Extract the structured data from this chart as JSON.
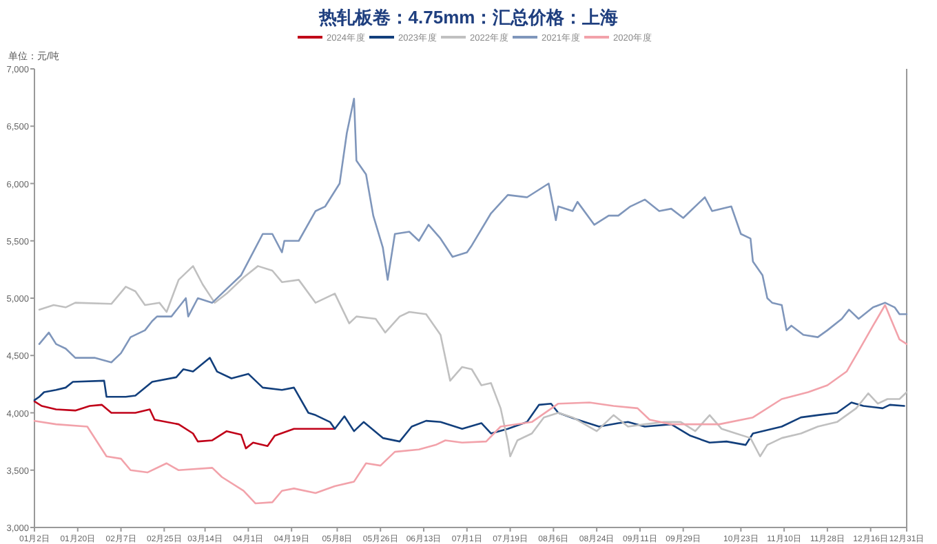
{
  "chart_data": {
    "type": "line",
    "title": "热轧板卷：4.75mm：汇总价格：上海",
    "annotations": [
      "单位：元/吨"
    ],
    "legend": "top",
    "xlim": [
      "--01-02",
      "--12-31"
    ],
    "xticks": [
      {
        "value": "--01-02",
        "label": "01月2日"
      },
      {
        "value": "--01-20",
        "label": "01月20日"
      },
      {
        "value": "--02-07",
        "label": "02月7日"
      },
      {
        "value": "--02-25",
        "label": "02月25日"
      },
      {
        "value": "--03-14",
        "label": "03月14日"
      },
      {
        "value": "--04-01",
        "label": "04月1日"
      },
      {
        "value": "--04-19",
        "label": "04月19日"
      },
      {
        "value": "--05-08",
        "label": "05月8日"
      },
      {
        "value": "--05-26",
        "label": "05月26日"
      },
      {
        "value": "--06-13",
        "label": "06月13日"
      },
      {
        "value": "--07-01",
        "label": "07月1日"
      },
      {
        "value": "--07-19",
        "label": "07月19日"
      },
      {
        "value": "--08-06",
        "label": "08月6日"
      },
      {
        "value": "--08-24",
        "label": "08月24日"
      },
      {
        "value": "--09-11",
        "label": "09月11日"
      },
      {
        "value": "--09-29",
        "label": "09月29日"
      },
      {
        "value": "--10-23",
        "label": "10月23日"
      },
      {
        "value": "--11-10",
        "label": "11月10日"
      },
      {
        "value": "--11-28",
        "label": "11月28日"
      },
      {
        "value": "--12-16",
        "label": "12月16日"
      },
      {
        "value": "--12-31",
        "label": "12月31日"
      }
    ],
    "ylim": [
      3000,
      7000
    ],
    "yticks": [
      {
        "value": 3000,
        "label": "3,000"
      },
      {
        "value": 3500,
        "label": "3,500"
      },
      {
        "value": 4000,
        "label": "4,000"
      },
      {
        "value": 4500,
        "label": "4,500"
      },
      {
        "value": 5000,
        "label": "5,000"
      },
      {
        "value": 5500,
        "label": "5,500"
      },
      {
        "value": 6000,
        "label": "6,000"
      },
      {
        "value": 6500,
        "label": "6,500"
      },
      {
        "value": 7000,
        "label": "7,000"
      }
    ],
    "series": [
      {
        "name": "2024年度",
        "color": "#c00018",
        "x": [
          "--01-02",
          "--01-05",
          "--01-11",
          "--01-19",
          "--01-25",
          "--01-30",
          "--02-03",
          "--02-13",
          "--02-19",
          "--02-21",
          "--03-03",
          "--03-09",
          "--03-11",
          "--03-17",
          "--03-23",
          "--03-29",
          "--03-31",
          "--04-03",
          "--04-09",
          "--04-12",
          "--04-20",
          "--04-29",
          "--05-07"
        ],
        "values": [
          4100,
          4060,
          4030,
          4020,
          4060,
          4070,
          4000,
          4000,
          4030,
          3940,
          3900,
          3820,
          3750,
          3760,
          3840,
          3810,
          3690,
          3740,
          3710,
          3800,
          3860,
          3860,
          3860
        ]
      },
      {
        "name": "2023年度",
        "color": "#123f7c",
        "x": [
          "--01-02",
          "--01-04",
          "--01-06",
          "--01-11",
          "--01-15",
          "--01-18",
          "--01-31",
          "--02-01",
          "--02-09",
          "--02-13",
          "--02-20",
          "--03-02",
          "--03-05",
          "--03-09",
          "--03-16",
          "--03-19",
          "--03-25",
          "--04-01",
          "--04-07",
          "--04-15",
          "--04-20",
          "--04-26",
          "--04-29",
          "--05-05",
          "--05-07",
          "--05-11",
          "--05-15",
          "--05-19",
          "--05-27",
          "--06-03",
          "--06-08",
          "--06-14",
          "--06-20",
          "--06-29",
          "--07-07",
          "--07-11",
          "--07-18",
          "--07-26",
          "--07-31",
          "--08-05",
          "--08-08",
          "--08-16",
          "--08-25",
          "--09-02",
          "--09-06",
          "--09-13",
          "--09-24",
          "--10-02",
          "--10-10",
          "--10-17",
          "--10-25",
          "--10-28",
          "--11-09",
          "--11-17",
          "--11-24",
          "--12-02",
          "--12-08",
          "--12-13",
          "--12-21",
          "--12-24",
          "--12-30"
        ],
        "values": [
          4110,
          4140,
          4180,
          4200,
          4220,
          4270,
          4280,
          4140,
          4140,
          4150,
          4270,
          4310,
          4380,
          4360,
          4480,
          4360,
          4300,
          4340,
          4220,
          4200,
          4220,
          4000,
          3980,
          3920,
          3860,
          3970,
          3840,
          3920,
          3780,
          3750,
          3880,
          3930,
          3920,
          3860,
          3910,
          3820,
          3860,
          3920,
          4070,
          4080,
          4000,
          3940,
          3880,
          3910,
          3920,
          3880,
          3900,
          3800,
          3740,
          3750,
          3720,
          3820,
          3880,
          3960,
          3980,
          4000,
          4090,
          4060,
          4040,
          4070,
          4060
        ]
      },
      {
        "name": "2022年度",
        "color": "#c0c0c0",
        "x": [
          "--01-04",
          "--01-10",
          "--01-15",
          "--01-19",
          "--02-03",
          "--02-09",
          "--02-13",
          "--02-17",
          "--02-23",
          "--02-26",
          "--03-03",
          "--03-09",
          "--03-13",
          "--03-18",
          "--03-23",
          "--03-30",
          "--04-05",
          "--04-11",
          "--04-15",
          "--04-22",
          "--04-29",
          "--05-07",
          "--05-13",
          "--05-16",
          "--05-24",
          "--05-28",
          "--06-03",
          "--06-07",
          "--06-14",
          "--06-20",
          "--06-24",
          "--06-29",
          "--07-03",
          "--07-07",
          "--07-11",
          "--07-15",
          "--07-18",
          "--07-19",
          "--07-22",
          "--07-28",
          "--08-02",
          "--08-08",
          "--08-14",
          "--08-19",
          "--08-24",
          "--08-31",
          "--09-06",
          "--09-13",
          "--09-21",
          "--09-28",
          "--10-04",
          "--10-10",
          "--10-15",
          "--10-21",
          "--10-27",
          "--10-31",
          "--11-03",
          "--11-09",
          "--11-17",
          "--11-24",
          "--12-02",
          "--12-10",
          "--12-15",
          "--12-19",
          "--12-23",
          "--12-28",
          "--12-31"
        ],
        "values": [
          4900,
          4940,
          4920,
          4960,
          4950,
          5100,
          5060,
          4940,
          4960,
          4880,
          5160,
          5280,
          5120,
          4960,
          5040,
          5180,
          5280,
          5240,
          5140,
          5160,
          4960,
          5040,
          4780,
          4840,
          4820,
          4700,
          4840,
          4880,
          4860,
          4680,
          4280,
          4400,
          4380,
          4240,
          4260,
          4040,
          3750,
          3620,
          3760,
          3820,
          3960,
          4000,
          3960,
          3900,
          3840,
          3980,
          3880,
          3900,
          3920,
          3920,
          3840,
          3980,
          3860,
          3820,
          3780,
          3620,
          3720,
          3780,
          3820,
          3880,
          3920,
          4040,
          4170,
          4080,
          4120,
          4120,
          4180
        ]
      },
      {
        "name": "2021年度",
        "color": "#7f96bb",
        "x": [
          "--01-04",
          "--01-08",
          "--01-11",
          "--01-15",
          "--01-19",
          "--01-27",
          "--02-03",
          "--02-07",
          "--02-11",
          "--02-17",
          "--02-20",
          "--02-22",
          "--02-28",
          "--03-06",
          "--03-07",
          "--03-11",
          "--03-17",
          "--03-23",
          "--03-29",
          "--04-03",
          "--04-07",
          "--04-11",
          "--04-15",
          "--04-16",
          "--04-22",
          "--04-29",
          "--05-03",
          "--05-09",
          "--05-12",
          "--05-14",
          "--05-15",
          "--05-16",
          "--05-20",
          "--05-23",
          "--05-27",
          "--05-29",
          "--06-01",
          "--06-07",
          "--06-11",
          "--06-15",
          "--06-20",
          "--06-25",
          "--07-01",
          "--07-03",
          "--07-11",
          "--07-18",
          "--07-26",
          "--08-04",
          "--08-07",
          "--08-08",
          "--08-14",
          "--08-16",
          "--08-23",
          "--08-29",
          "--09-02",
          "--09-07",
          "--09-13",
          "--09-19",
          "--09-24",
          "--09-29",
          "--10-08",
          "--10-11",
          "--10-19",
          "--10-23",
          "--10-27",
          "--10-28",
          "--11-01",
          "--11-03",
          "--11-05",
          "--11-09",
          "--11-11",
          "--11-13",
          "--11-18",
          "--11-24",
          "--11-28",
          "--12-04",
          "--12-07",
          "--12-11",
          "--12-17",
          "--12-22",
          "--12-26",
          "--12-28",
          "--12-31"
        ],
        "values": [
          4600,
          4700,
          4600,
          4560,
          4480,
          4480,
          4440,
          4520,
          4660,
          4720,
          4800,
          4840,
          4840,
          5000,
          4840,
          5000,
          4960,
          5080,
          5200,
          5400,
          5560,
          5560,
          5400,
          5500,
          5500,
          5760,
          5800,
          6000,
          6440,
          6640,
          6740,
          6200,
          6080,
          5720,
          5440,
          5160,
          5560,
          5580,
          5500,
          5640,
          5520,
          5360,
          5400,
          5460,
          5740,
          5900,
          5880,
          6000,
          5680,
          5800,
          5760,
          5840,
          5640,
          5720,
          5720,
          5800,
          5860,
          5760,
          5780,
          5700,
          5880,
          5760,
          5800,
          5560,
          5520,
          5320,
          5200,
          5000,
          4960,
          4940,
          4720,
          4760,
          4680,
          4660,
          4720,
          4820,
          4900,
          4820,
          4920,
          4960,
          4920,
          4860,
          4860
        ]
      },
      {
        "name": "2020年度",
        "color": "#f2a2aa",
        "x": [
          "--01-02",
          "--01-11",
          "--01-24",
          "--02-01",
          "--02-07",
          "--02-11",
          "--02-18",
          "--02-26",
          "--03-03",
          "--03-17",
          "--03-21",
          "--03-30",
          "--04-04",
          "--04-11",
          "--04-15",
          "--04-20",
          "--04-29",
          "--05-07",
          "--05-15",
          "--05-20",
          "--05-26",
          "--06-01",
          "--06-11",
          "--06-18",
          "--06-22",
          "--06-29",
          "--07-09",
          "--07-15",
          "--07-28",
          "--08-08",
          "--08-21",
          "--08-31",
          "--09-10",
          "--09-15",
          "--09-24",
          "--10-06",
          "--10-14",
          "--10-28",
          "--11-09",
          "--11-20",
          "--11-28",
          "--12-06",
          "--12-11",
          "--12-17",
          "--12-22",
          "--12-24",
          "--12-28",
          "--12-31"
        ],
        "values": [
          3930,
          3900,
          3880,
          3620,
          3600,
          3500,
          3480,
          3560,
          3500,
          3520,
          3440,
          3320,
          3210,
          3220,
          3320,
          3340,
          3300,
          3360,
          3400,
          3560,
          3540,
          3660,
          3680,
          3720,
          3760,
          3740,
          3750,
          3880,
          3920,
          4080,
          4090,
          4060,
          4040,
          3940,
          3900,
          3900,
          3900,
          3960,
          4120,
          4180,
          4240,
          4360,
          4540,
          4760,
          4940,
          4840,
          4640,
          4600
        ]
      }
    ]
  }
}
